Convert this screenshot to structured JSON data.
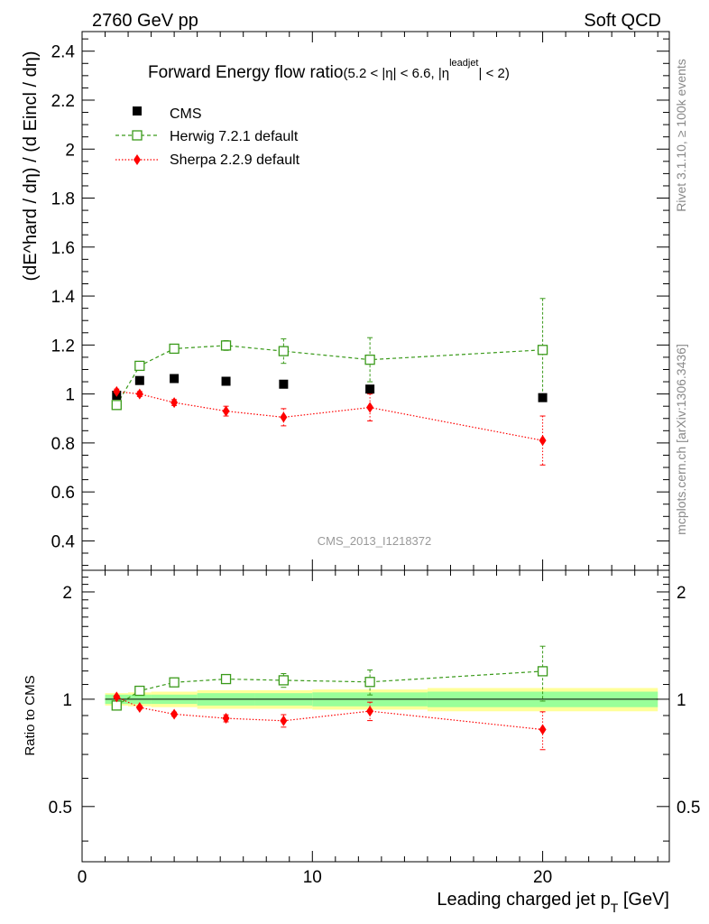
{
  "header": {
    "left": "2760 GeV pp",
    "right": "Soft QCD"
  },
  "title_main": "Forward Energy flow ratio",
  "title_sub": "(5.2 < |η| < 6.6, |η",
  "title_sup": "leadjet",
  "title_end": "| < 2)",
  "ylabel_main": "(dE^hard / dη) / (d Eincl / dη)",
  "ylabel_ratio": "Ratio to CMS",
  "xlabel": "Leading charged jet p",
  "xlabel_sub": "T",
  "xlabel_unit": " [GeV]",
  "watermark": "CMS_2013_I1218372",
  "side_top": "Rivet 3.1.10, ≥ 100k events",
  "side_bottom": "mcplots.cern.ch [arXiv:1306.3436]",
  "legend": [
    {
      "label": "CMS"
    },
    {
      "label": "Herwig 7.2.1 default"
    },
    {
      "label": "Sherpa 2.2.9 default"
    }
  ],
  "colors": {
    "cms": "#000000",
    "herwig": "#3a9a1a",
    "sherpa": "#ff0000",
    "band_inner": "#99ff99",
    "band_outer": "#ffff99"
  },
  "chart_data": {
    "type": "scatter",
    "xlim": [
      0,
      25.5
    ],
    "ylim_main": [
      0.28,
      2.48
    ],
    "ylim_ratio": [
      0.35,
      2.3
    ],
    "ratio_log_scale": true,
    "x_ticks": [
      0,
      10,
      20
    ],
    "y_ticks_main": [
      0.4,
      0.6,
      0.8,
      1,
      1.2,
      1.4,
      1.6,
      1.8,
      2,
      2.2,
      2.4
    ],
    "y_ticks_ratio": [
      0.5,
      1,
      2
    ],
    "series": [
      {
        "name": "CMS",
        "x": [
          1.5,
          2.5,
          4,
          6.25,
          8.75,
          12.5,
          20
        ],
        "y": [
          0.995,
          1.055,
          1.063,
          1.052,
          1.04,
          1.02,
          0.985
        ]
      },
      {
        "name": "Herwig 7.2.1 default",
        "x": [
          1.5,
          2.5,
          4,
          6.25,
          8.75,
          12.5,
          20
        ],
        "y": [
          0.955,
          1.115,
          1.185,
          1.198,
          1.175,
          1.14,
          1.18
        ],
        "err": [
          0.01,
          0.01,
          0.012,
          0.02,
          0.05,
          0.09,
          0.21
        ]
      },
      {
        "name": "Sherpa 2.2.9 default",
        "x": [
          1.5,
          2.5,
          4,
          6.25,
          8.75,
          12.5,
          20
        ],
        "y": [
          1.01,
          1.0,
          0.965,
          0.93,
          0.905,
          0.945,
          0.81
        ],
        "err": [
          0.01,
          0.01,
          0.012,
          0.02,
          0.035,
          0.055,
          0.1
        ]
      }
    ],
    "ratio_series": [
      {
        "name": "Herwig 7.2.1 default",
        "x": [
          1.5,
          2.5,
          4,
          6.25,
          8.75,
          12.5,
          20
        ],
        "y": [
          0.96,
          1.056,
          1.115,
          1.139,
          1.13,
          1.118,
          1.198
        ],
        "err": [
          0.01,
          0.01,
          0.012,
          0.02,
          0.05,
          0.09,
          0.21
        ]
      },
      {
        "name": "Sherpa 2.2.9 default",
        "x": [
          1.5,
          2.5,
          4,
          6.25,
          8.75,
          12.5,
          20
        ],
        "y": [
          1.015,
          0.948,
          0.908,
          0.884,
          0.87,
          0.926,
          0.822
        ],
        "err": [
          0.01,
          0.01,
          0.012,
          0.02,
          0.035,
          0.055,
          0.1
        ]
      }
    ],
    "uncertainty_band": [
      {
        "x0": 1,
        "x1": 2,
        "inner": 0.03,
        "outer": 0.04
      },
      {
        "x0": 2,
        "x1": 3,
        "inner": 0.03,
        "outer": 0.045
      },
      {
        "x0": 3,
        "x1": 5,
        "inner": 0.03,
        "outer": 0.05
      },
      {
        "x0": 5,
        "x1": 7.5,
        "inner": 0.04,
        "outer": 0.06
      },
      {
        "x0": 7.5,
        "x1": 10,
        "inner": 0.04,
        "outer": 0.06
      },
      {
        "x0": 10,
        "x1": 15,
        "inner": 0.045,
        "outer": 0.065
      },
      {
        "x0": 15,
        "x1": 25,
        "inner": 0.05,
        "outer": 0.075
      }
    ]
  }
}
